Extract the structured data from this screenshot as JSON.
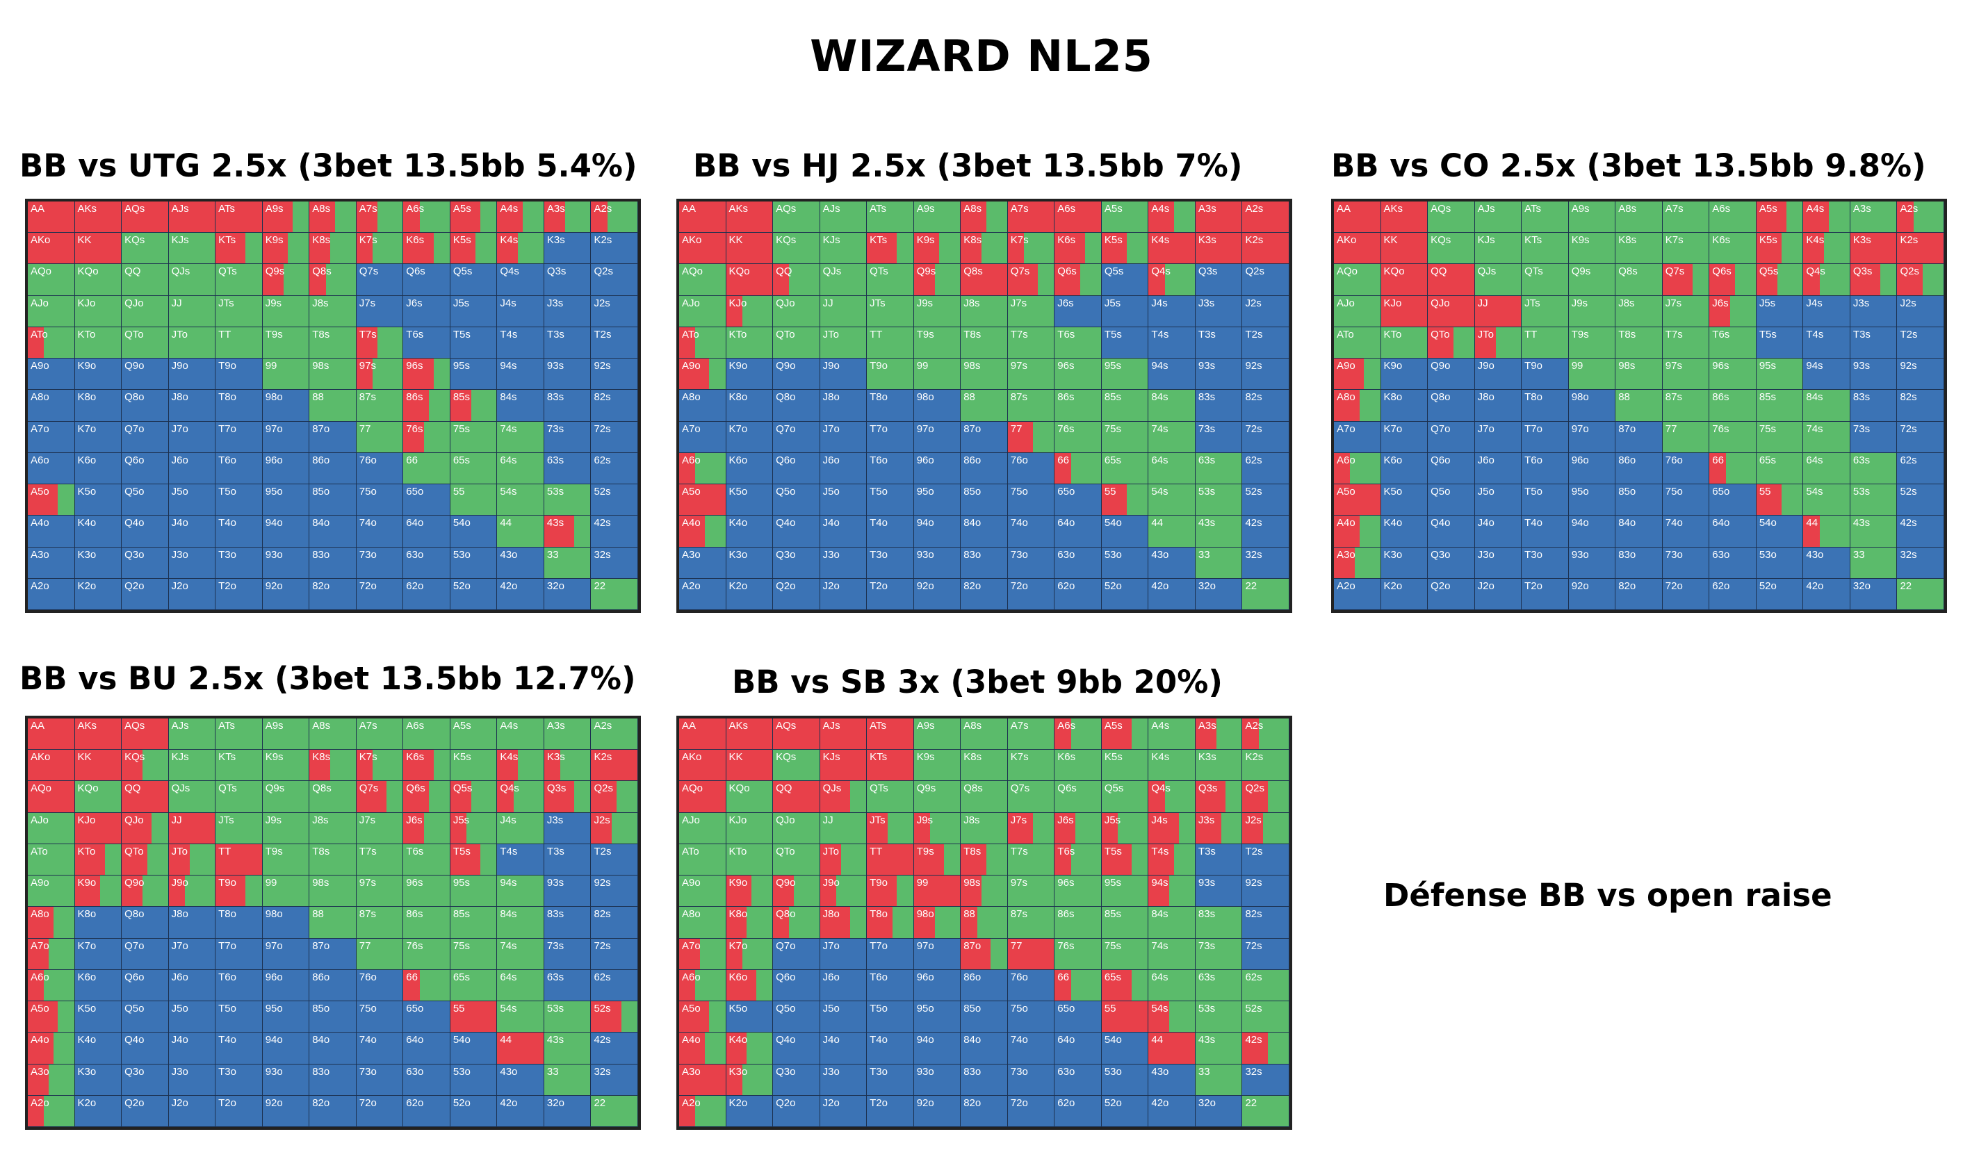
{
  "title": "WIZARD NL25",
  "note": "Défense BB vs open raise",
  "colors": {
    "raise": "#e8404a",
    "call": "#5bbb6b",
    "fold": "#3b73b5"
  },
  "ranks": [
    "A",
    "K",
    "Q",
    "J",
    "T",
    "9",
    "8",
    "7",
    "6",
    "5",
    "4",
    "3",
    "2"
  ],
  "chart_data": [
    {
      "type": "table",
      "title": "BB vs UTG 2.5x (3bet 13.5bb 5.4%)",
      "rows": [
        "rrrrrmmmmmmmm",
        "rrggmmmmmmmbb",
        "gggggmmbbbbbb",
        "gggggggbbbbbb",
        "mggggggmbbbbb",
        "bbbbbggmmbbbb",
        "bbbbbbggmmbbb",
        "bbbbbbbgmggbb",
        "bbbbbbbbgggbb",
        "mbbbbbbbbgggb",
        "bbbbbbbbbbgmb",
        "bbbbbbbbbbbgb",
        "bbbbbbbbbbbbg"
      ]
    },
    {
      "type": "table",
      "title": "BB vs HJ 2.5x (3bet 13.5bb 7%)",
      "rows": [
        "rrggggmrrgmrr",
        "rrggmmmmmmrrr",
        "grmggmrmmbmbb",
        "gmggggggbbbbb",
        "mggggggggbbbb",
        "mbbbggggggbbb",
        "bbbbbbgggggbb",
        "bbbbbbbmgggbb",
        "mbbbbbbbmgggb",
        "rbbbbbbbbmggb",
        "mbbbbbbbbbggb",
        "bbbbbbbbbbbgb",
        "bbbbbbbbbbbbg"
      ]
    },
    {
      "type": "table",
      "title": "BB vs CO 2.5x (3bet 13.5bb 9.8%)",
      "rows": [
        "rrgggggggmmgm",
        "rrgggggggmmrr",
        "grrggggmmmmmm",
        "grrrggggmbbbb",
        "ggmmgggggbbbb",
        "mbbbbgggggbbb",
        "mbbbbbgggggbb",
        "bbbbbbbggggbb",
        "mbbbbbbbmgggb",
        "rbbbbbbbbmggb",
        "mbbbbbbbbbmgb",
        "mbbbbbbbbbbgb",
        "bbbbbbbbbbbbg"
      ]
    },
    {
      "type": "table",
      "title": "BB vs BU 2.5x (3bet 13.5bb 12.7%)",
      "rows": [
        "rrrgggggggggg",
        "rrmgggmmmgmmr",
        "rgrggggmmmmmm",
        "grmrggggmmgbm",
        "gmmmrggggmbbb",
        "gmmmmggggggbb",
        "mbbbbbgggggbb",
        "mbbbbbbggggbb",
        "mbbbbbbbmggbb",
        "mbbbbbbbbrggm",
        "mbbbbbbbbbrgb",
        "mbbbbbbbbbbgb",
        "mbbbbbbbbbbbg"
      ]
    },
    {
      "type": "table",
      "title": "BB vs SB 3x (3bet 9bb 20%)",
      "rows": [
        "rrrrrgggmmgmm",
        "rrgrrgggggggg",
        "rgrmggggggmmm",
        "ggggmmgmmmmmm",
        "gggmrmmgmmmbb",
        "gmmmmrmgggmbb",
        "gmmmmmmgggggb",
        "mmbbbbmrggggb",
        "mmbbbbbbmmggg",
        "mbbbbbbbbrmgg",
        "mmbbbbbbbbrgm",
        "rmbbbbbbbbbgb",
        "mbbbbbbbbbbbg"
      ]
    }
  ]
}
